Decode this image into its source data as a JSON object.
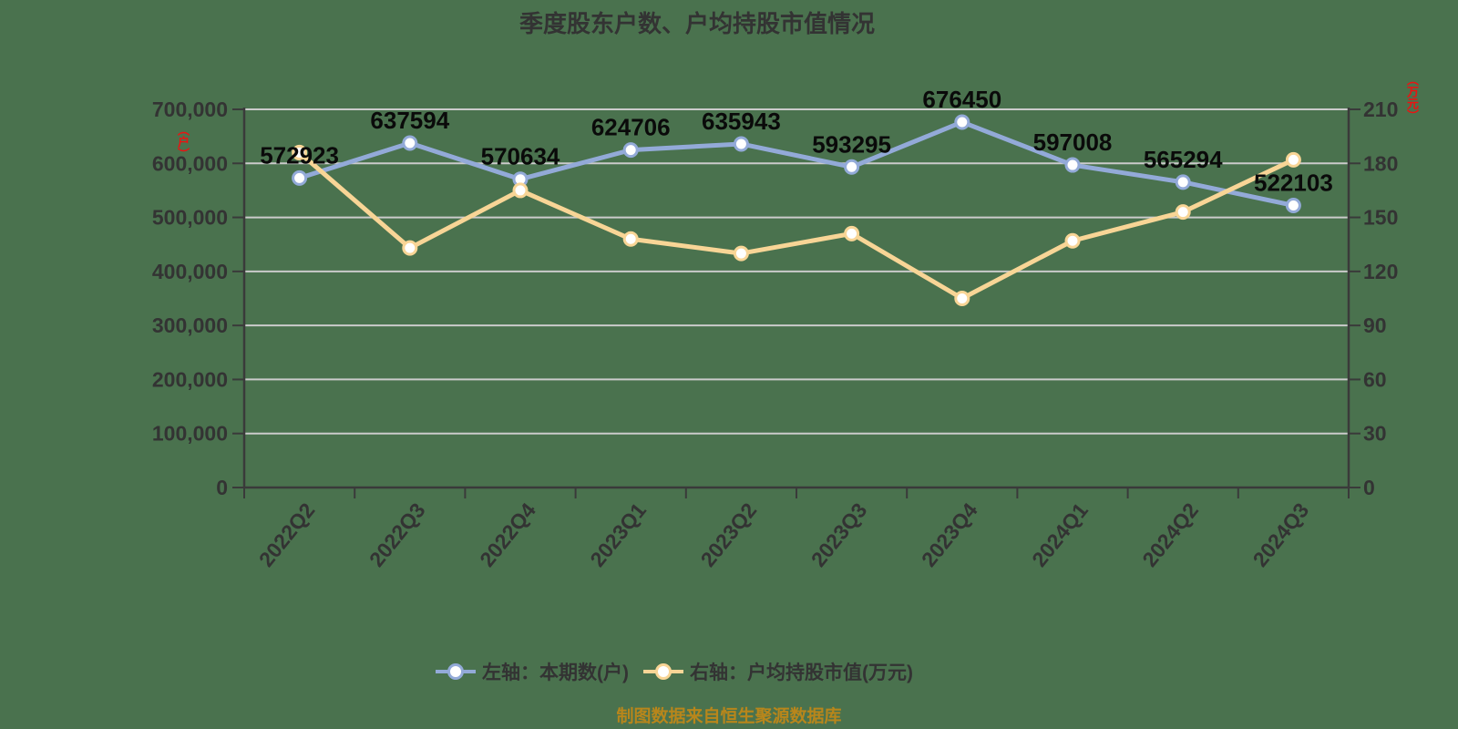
{
  "title": "季度股东户数、户均持股市值情况",
  "source_note": "制图数据来自恒生聚源数据库",
  "axes": {
    "left_unit": "（户）",
    "right_unit": "（万元）",
    "unit_color": "#ee1111"
  },
  "legend": {
    "items": [
      {
        "label": "左轴：本期数(户)",
        "color": "#93aad8"
      },
      {
        "label": "右轴：户均持股市值(万元)",
        "color": "#f8d596"
      }
    ]
  },
  "chart_data": {
    "type": "line",
    "title": "季度股东户数、户均持股市值情况",
    "categories": [
      "2022Q2",
      "2022Q3",
      "2022Q4",
      "2023Q1",
      "2023Q2",
      "2023Q3",
      "2023Q4",
      "2024Q1",
      "2024Q2",
      "2024Q3"
    ],
    "series": [
      {
        "name": "左轴：本期数(户)",
        "axis": "left",
        "color": "#93aad8",
        "values": [
          572923,
          637594,
          570634,
          624706,
          635943,
          593295,
          676450,
          597008,
          565294,
          522103
        ],
        "point_labels": true
      },
      {
        "name": "右轴：户均持股市值(万元)",
        "axis": "right",
        "color": "#f8d596",
        "values": [
          186,
          133,
          165,
          138,
          130,
          141,
          105,
          137,
          153,
          182
        ],
        "point_labels": false
      }
    ],
    "left_axis": {
      "min": 0,
      "max": 700000,
      "step": 100000,
      "tick_labels": [
        "0",
        "100,000",
        "200,000",
        "300,000",
        "400,000",
        "500,000",
        "600,000",
        "700,000"
      ]
    },
    "right_axis": {
      "min": 0,
      "max": 210,
      "step": 30,
      "tick_labels": [
        "0",
        "30",
        "60",
        "90",
        "120",
        "150",
        "180",
        "210"
      ]
    },
    "grid": true,
    "legend_position": "bottom"
  },
  "style": {
    "background": "#4a724e",
    "grid_color": "#cbcbcb",
    "axis_color": "#3a3a3a",
    "tick_text_color": "#333333",
    "point_label_color": "#0a0a0a",
    "footer_color": "#b8861b"
  }
}
